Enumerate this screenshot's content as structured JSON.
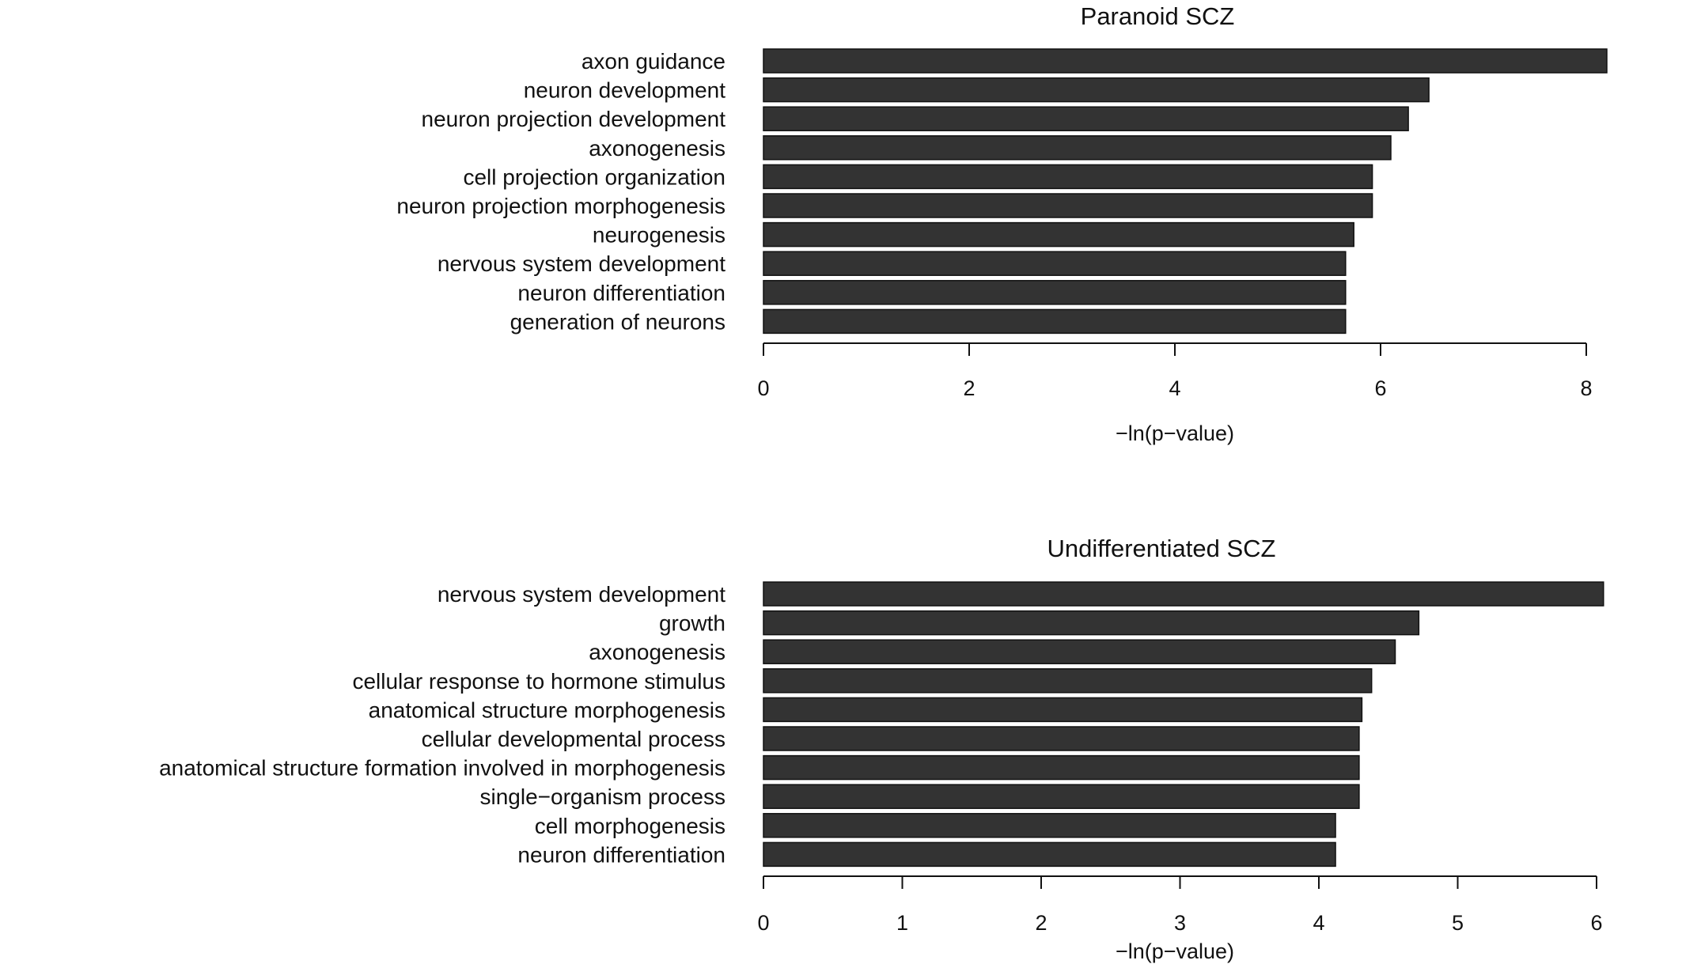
{
  "colors": {
    "bar_fill": "#333333",
    "bar_stroke": "#111111",
    "axis": "#111111"
  },
  "chart_data": [
    {
      "type": "bar",
      "orientation": "horizontal",
      "title": "Paranoid SCZ",
      "xlabel": "−ln(p−value)",
      "xlim": [
        0,
        8.2
      ],
      "xticks": [
        0,
        2,
        4,
        6,
        8
      ],
      "tick_labels": [
        "0",
        "2",
        "4",
        "6",
        "8"
      ],
      "grid": false,
      "categories": [
        "axon guidance",
        "neuron development",
        "neuron projection development",
        "axonogenesis",
        "cell projection organization",
        "neuron projection morphogenesis",
        "neurogenesis",
        "nervous system development",
        "neuron differentiation",
        "generation of neurons"
      ],
      "values": [
        8.2,
        6.47,
        6.27,
        6.1,
        5.92,
        5.92,
        5.74,
        5.66,
        5.66,
        5.66
      ]
    },
    {
      "type": "bar",
      "orientation": "horizontal",
      "title": "Undifferentiated SCZ",
      "xlabel": "−ln(p−value)",
      "xlim": [
        0,
        6.05
      ],
      "xticks": [
        0,
        1,
        2,
        3,
        4,
        5,
        6
      ],
      "tick_labels": [
        "0",
        "1",
        "2",
        "3",
        "4",
        "5",
        "6"
      ],
      "grid": false,
      "categories": [
        "nervous system development",
        "growth",
        "axonogenesis",
        "cellular response to hormone stimulus",
        "anatomical structure morphogenesis",
        "cellular developmental process",
        "anatomical structure formation involved in morphogenesis",
        "single−organism process",
        "cell morphogenesis",
        "neuron differentiation"
      ],
      "values": [
        6.05,
        4.72,
        4.55,
        4.38,
        4.31,
        4.29,
        4.29,
        4.29,
        4.12,
        4.12
      ]
    }
  ]
}
